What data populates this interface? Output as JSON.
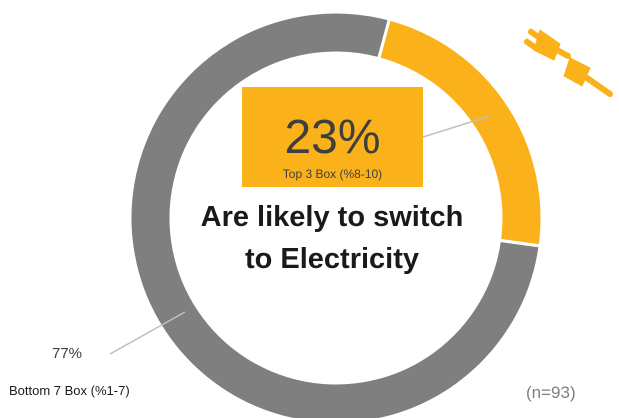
{
  "chart_data": {
    "type": "pie",
    "donut": true,
    "slices": [
      {
        "name": "Top 3 Box (%8-10)",
        "value": 23,
        "label": "23%",
        "color": "#fbb21a"
      },
      {
        "name": "Bottom 7 Box (%1-7)",
        "value": 77,
        "label": "77%",
        "color": "#7f7f7f"
      }
    ],
    "center_text": "Are likely to switch to Electricity",
    "center_text_lines": [
      "Are likely to switch",
      "to Electricity"
    ],
    "annotation": "(n=93)"
  },
  "icon": {
    "name": "electric-plug-icon",
    "color": "#fbb21a"
  }
}
